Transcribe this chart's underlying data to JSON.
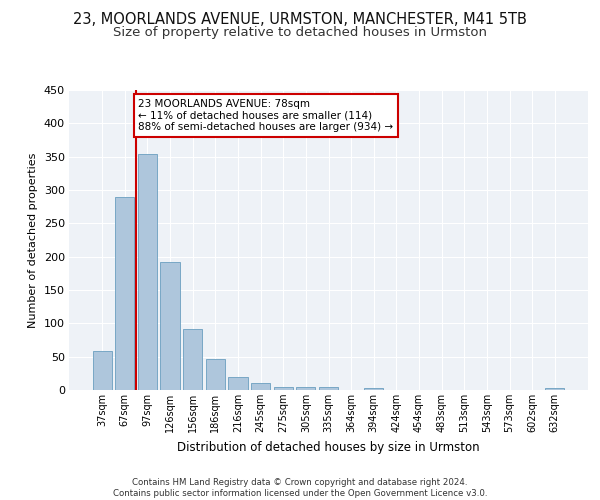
{
  "title_line1": "23, MOORLANDS AVENUE, URMSTON, MANCHESTER, M41 5TB",
  "title_line2": "Size of property relative to detached houses in Urmston",
  "xlabel": "Distribution of detached houses by size in Urmston",
  "ylabel": "Number of detached properties",
  "categories": [
    "37sqm",
    "67sqm",
    "97sqm",
    "126sqm",
    "156sqm",
    "186sqm",
    "216sqm",
    "245sqm",
    "275sqm",
    "305sqm",
    "335sqm",
    "364sqm",
    "394sqm",
    "424sqm",
    "454sqm",
    "483sqm",
    "513sqm",
    "543sqm",
    "573sqm",
    "602sqm",
    "632sqm"
  ],
  "values": [
    58,
    289,
    354,
    192,
    91,
    46,
    20,
    10,
    5,
    4,
    5,
    0,
    3,
    0,
    0,
    0,
    0,
    0,
    0,
    0,
    3
  ],
  "bar_color": "#aec6dc",
  "bar_edge_color": "#6a9fc0",
  "vline_x": 1.5,
  "vline_color": "#cc0000",
  "annotation_text": "23 MOORLANDS AVENUE: 78sqm\n← 11% of detached houses are smaller (114)\n88% of semi-detached houses are larger (934) →",
  "annotation_box_color": "#ffffff",
  "annotation_box_edge_color": "#cc0000",
  "ylim": [
    0,
    450
  ],
  "yticks": [
    0,
    50,
    100,
    150,
    200,
    250,
    300,
    350,
    400,
    450
  ],
  "footer_text": "Contains HM Land Registry data © Crown copyright and database right 2024.\nContains public sector information licensed under the Open Government Licence v3.0.",
  "background_color": "#eef2f7",
  "grid_color": "#ffffff",
  "title1_fontsize": 10.5,
  "title2_fontsize": 9.5,
  "ann_fontsize": 7.5,
  "ylabel_fontsize": 8,
  "xlabel_fontsize": 8.5,
  "ytick_fontsize": 8,
  "xtick_fontsize": 7
}
